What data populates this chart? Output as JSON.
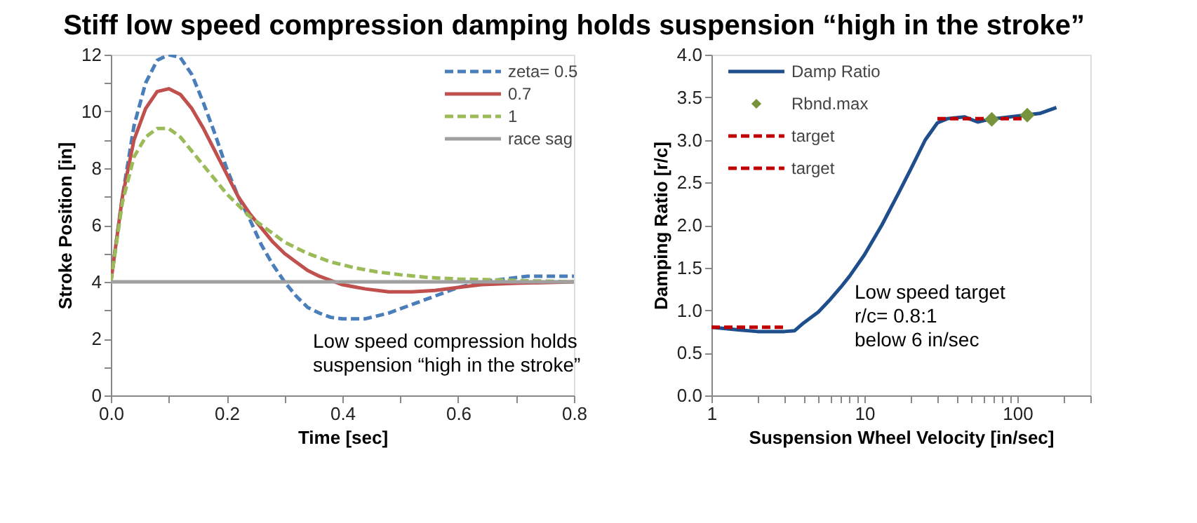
{
  "chart_data": [
    {
      "type": "line",
      "title": "Stiff low speed compression damping holds suspension “high in the stroke”",
      "xlabel": "Time [sec]",
      "ylabel": "Stroke Position [in]",
      "xlim": [
        0,
        0.8
      ],
      "xticks": [
        {
          "value": 0,
          "label": "0.0"
        },
        {
          "value": 0.1,
          "label": null
        },
        {
          "value": 0.2,
          "label": "0.2"
        },
        {
          "value": 0.3,
          "label": null
        },
        {
          "value": 0.4,
          "label": "0.4"
        },
        {
          "value": 0.5,
          "label": null
        },
        {
          "value": 0.6,
          "label": "0.6"
        },
        {
          "value": 0.7,
          "label": null
        },
        {
          "value": 0.8,
          "label": "0.8"
        }
      ],
      "ylim": [
        0,
        12
      ],
      "yticks": [
        0,
        {
          "value": 1,
          "label": null
        },
        2,
        {
          "value": 3,
          "label": null
        },
        4,
        {
          "value": 5,
          "label": null
        },
        6,
        {
          "value": 7,
          "label": null
        },
        8,
        {
          "value": 9,
          "label": null
        },
        10,
        {
          "value": 11,
          "label": null
        },
        12
      ],
      "grid": false,
      "legend": "top right",
      "series": [
        {
          "name": "zeta= 0.5",
          "color": "#4a7ebb",
          "line_style": "dashed",
          "x": [
            0,
            0.02,
            0.04,
            0.06,
            0.08,
            0.1,
            0.12,
            0.14,
            0.16,
            0.18,
            0.2,
            0.22,
            0.24,
            0.26,
            0.28,
            0.3,
            0.32,
            0.34,
            0.36,
            0.38,
            0.4,
            0.44,
            0.48,
            0.52,
            0.56,
            0.6,
            0.64,
            0.68,
            0.72,
            0.76,
            0.8
          ],
          "values": [
            4,
            7,
            9.5,
            11,
            11.8,
            12,
            11.9,
            11.3,
            10.3,
            9.2,
            8,
            7,
            6.2,
            5.3,
            4.6,
            4,
            3.5,
            3.1,
            2.9,
            2.75,
            2.7,
            2.7,
            2.9,
            3.2,
            3.5,
            3.8,
            4,
            4.1,
            4.2,
            4.2,
            4.2
          ]
        },
        {
          "name": "0.7",
          "color": "#c0504d",
          "line_style": "solid",
          "x": [
            0,
            0.02,
            0.04,
            0.06,
            0.08,
            0.1,
            0.12,
            0.14,
            0.16,
            0.18,
            0.2,
            0.22,
            0.24,
            0.26,
            0.28,
            0.3,
            0.32,
            0.34,
            0.36,
            0.38,
            0.4,
            0.44,
            0.48,
            0.52,
            0.56,
            0.6,
            0.64,
            0.7,
            0.8
          ],
          "values": [
            4,
            7,
            9,
            10.1,
            10.7,
            10.8,
            10.6,
            10.1,
            9.4,
            8.6,
            7.8,
            7,
            6.4,
            5.9,
            5.4,
            5,
            4.7,
            4.4,
            4.2,
            4.05,
            3.9,
            3.75,
            3.65,
            3.65,
            3.7,
            3.8,
            3.9,
            3.95,
            4
          ]
        },
        {
          "name": "1",
          "color": "#9bbb59",
          "line_style": "dashed",
          "x": [
            0,
            0.02,
            0.04,
            0.06,
            0.08,
            0.1,
            0.12,
            0.14,
            0.16,
            0.18,
            0.2,
            0.22,
            0.24,
            0.26,
            0.28,
            0.3,
            0.34,
            0.38,
            0.42,
            0.46,
            0.5,
            0.55,
            0.6,
            0.7,
            0.8
          ],
          "values": [
            4,
            6.8,
            8.4,
            9.1,
            9.4,
            9.4,
            9.1,
            8.6,
            8.1,
            7.6,
            7.1,
            6.7,
            6.3,
            6,
            5.7,
            5.4,
            5,
            4.7,
            4.5,
            4.35,
            4.25,
            4.15,
            4.1,
            4.05,
            4
          ]
        },
        {
          "name": "race sag",
          "color": "#a0a0a0",
          "line_style": "solid",
          "x": [
            0,
            0.8
          ],
          "values": [
            4,
            4
          ]
        }
      ],
      "annotations": [
        "Low speed compression holds",
        "suspension “high in the stroke”"
      ]
    },
    {
      "type": "line",
      "xlabel": "Suspension Wheel Velocity [in/sec]",
      "ylabel": "Damping Ratio [r/c]",
      "log": "x",
      "xlim": [
        1,
        300
      ],
      "xticks": [
        1,
        {
          "value": 2,
          "label": null
        },
        {
          "value": 3,
          "label": null
        },
        {
          "value": 4,
          "label": null
        },
        {
          "value": 5,
          "label": null
        },
        {
          "value": 6,
          "label": null
        },
        {
          "value": 7,
          "label": null
        },
        {
          "value": 8,
          "label": null
        },
        {
          "value": 9,
          "label": null
        },
        10,
        {
          "value": 20,
          "label": null
        },
        {
          "value": 30,
          "label": null
        },
        {
          "value": 40,
          "label": null
        },
        {
          "value": 50,
          "label": null
        },
        {
          "value": 60,
          "label": null
        },
        {
          "value": 70,
          "label": null
        },
        {
          "value": 80,
          "label": null
        },
        {
          "value": 90,
          "label": null
        },
        100,
        {
          "value": 200,
          "label": null
        },
        {
          "value": 300,
          "label": null
        }
      ],
      "ylim": [
        0,
        4
      ],
      "yticks": [
        {
          "value": 0,
          "label": "0.0"
        },
        {
          "value": 0.5,
          "label": "0.5"
        },
        {
          "value": 1,
          "label": "1.0"
        },
        {
          "value": 1.5,
          "label": "1.5"
        },
        {
          "value": 2,
          "label": "2.0"
        },
        {
          "value": 2.5,
          "label": "2.5"
        },
        {
          "value": 3,
          "label": "3.0"
        },
        {
          "value": 3.5,
          "label": "3.5"
        },
        {
          "value": 4,
          "label": "4.0"
        }
      ],
      "grid": false,
      "legend": "top left",
      "series": [
        {
          "name": "Damp Ratio",
          "color": "#1f4e8c",
          "line_style": "solid",
          "x": [
            1,
            1.5,
            2,
            3,
            3.5,
            4,
            5,
            6,
            7,
            8,
            10,
            13,
            17,
            20,
            25,
            30,
            35,
            45,
            55,
            65,
            80,
            100,
            140,
            180
          ],
          "values": [
            0.8,
            0.77,
            0.75,
            0.75,
            0.76,
            0.85,
            0.98,
            1.13,
            1.27,
            1.4,
            1.65,
            2,
            2.4,
            2.65,
            3,
            3.2,
            3.25,
            3.27,
            3.21,
            3.24,
            3.26,
            3.28,
            3.31,
            3.38
          ]
        },
        {
          "name": "Rbnd.max",
          "type": "scatter",
          "marker": "diamond",
          "color": "#77933c",
          "x": [
            68,
            116
          ],
          "values": [
            3.24,
            3.29
          ]
        },
        {
          "name": "target",
          "color": "#c00000",
          "line_style": "dashed",
          "x": [
            1,
            3
          ],
          "values": [
            0.8,
            0.8
          ]
        },
        {
          "name": "target",
          "color": "#c00000",
          "line_style": "dashed",
          "x": [
            30,
            110
          ],
          "values": [
            3.25,
            3.25
          ]
        }
      ],
      "annotations": [
        "Low speed target",
        "r/c= 0.8:1",
        "below 6 in/sec"
      ]
    }
  ]
}
